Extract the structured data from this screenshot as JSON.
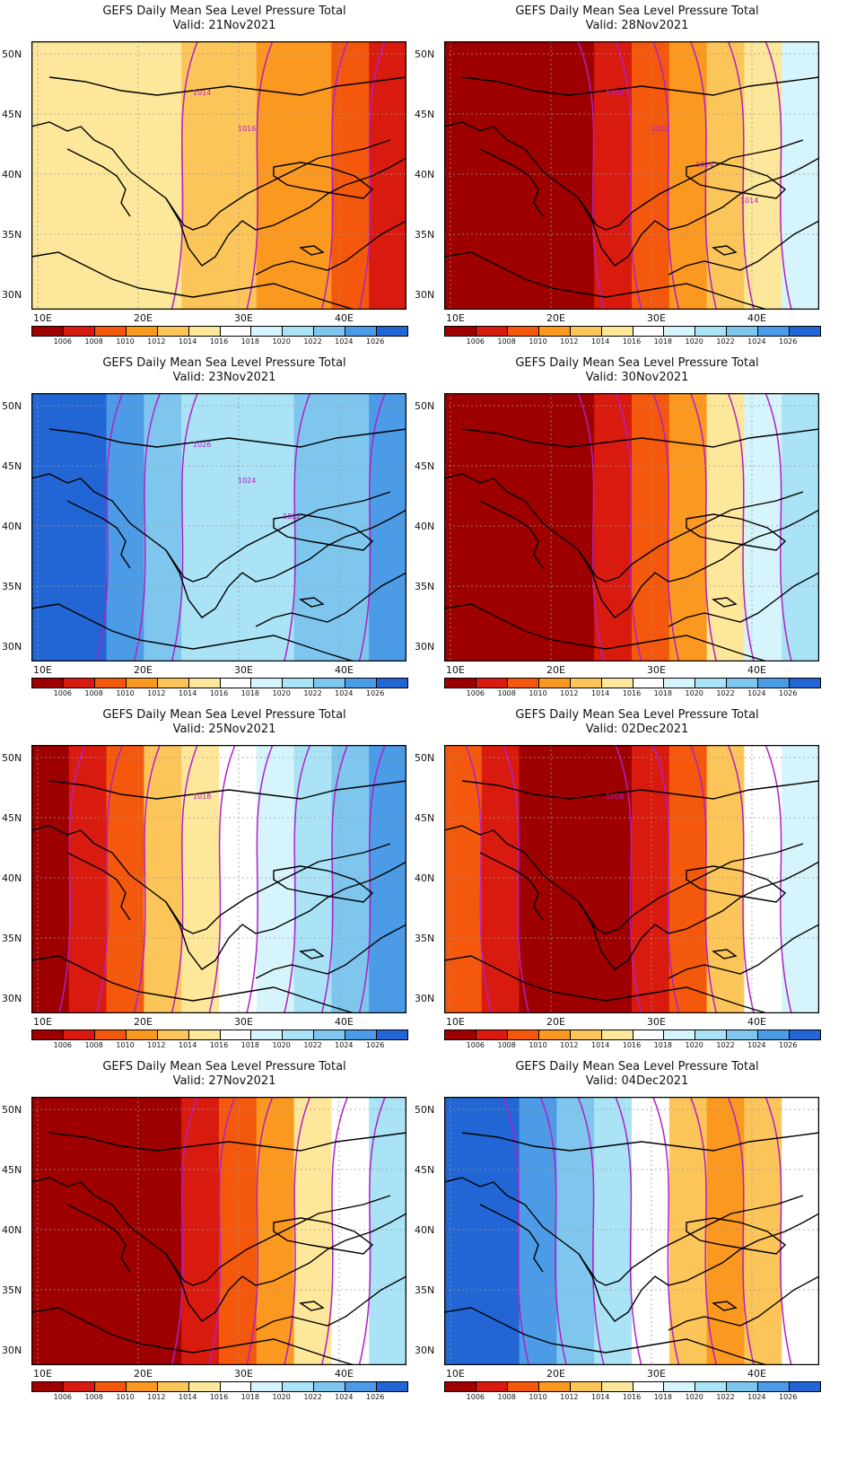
{
  "levels": [
    "1006",
    "1008",
    "1010",
    "1012",
    "1014",
    "1016",
    "1018",
    "1020",
    "1022",
    "1024",
    "1026"
  ],
  "palette": [
    "#9e0000",
    "#d91b0f",
    "#f3580c",
    "#fb9820",
    "#fcc55a",
    "#fde79a",
    "#ffffff",
    "#d6f4fb",
    "#a9e3f5",
    "#7fc6ef",
    "#4c9be6",
    "#2166d4"
  ],
  "lat_labels": [
    "50N",
    "45N",
    "40N",
    "35N",
    "30N"
  ],
  "lon_labels": [
    "10E",
    "20E",
    "30E",
    "40E"
  ],
  "panels": [
    {
      "title": "GEFS Daily Mean Sea Level Pressure Total",
      "valid": "Valid: 21Nov2021",
      "field": [
        5,
        5,
        5,
        5,
        4,
        4,
        3,
        3,
        2,
        1
      ],
      "contour_labels": [
        "1014",
        "1016"
      ]
    },
    {
      "title": "GEFS Daily Mean Sea Level Pressure Total",
      "valid": "Valid: 28Nov2021",
      "field": [
        0,
        0,
        0,
        0,
        1,
        2,
        3,
        4,
        5,
        7
      ],
      "contour_labels": [
        "1008",
        "1012",
        "1014",
        "1014"
      ]
    },
    {
      "title": "GEFS Daily Mean Sea Level Pressure Total",
      "valid": "Valid: 23Nov2021",
      "field": [
        11,
        11,
        10,
        9,
        8,
        8,
        8,
        9,
        9,
        10
      ],
      "contour_labels": [
        "1026",
        "1024",
        "1022"
      ]
    },
    {
      "title": "GEFS Daily Mean Sea Level Pressure Total",
      "valid": "Valid: 30Nov2021",
      "field": [
        0,
        0,
        0,
        0,
        1,
        2,
        3,
        5,
        7,
        8
      ],
      "contour_labels": []
    },
    {
      "title": "GEFS Daily Mean Sea Level Pressure Total",
      "valid": "Valid: 25Nov2021",
      "field": [
        0,
        1,
        2,
        4,
        5,
        6,
        7,
        8,
        9,
        10
      ],
      "contour_labels": [
        "1018"
      ]
    },
    {
      "title": "GEFS Daily Mean Sea Level Pressure Total",
      "valid": "Valid: 02Dec2021",
      "field": [
        2,
        1,
        0,
        0,
        0,
        1,
        2,
        4,
        6,
        7
      ],
      "contour_labels": [
        "1008"
      ]
    },
    {
      "title": "GEFS Daily Mean Sea Level Pressure Total",
      "valid": "Valid: 27Nov2021",
      "field": [
        0,
        0,
        0,
        0,
        1,
        2,
        3,
        5,
        6,
        8
      ],
      "contour_labels": []
    },
    {
      "title": "GEFS Daily Mean Sea Level Pressure Total",
      "valid": "Valid: 04Dec2021",
      "field": [
        11,
        11,
        10,
        9,
        8,
        6,
        4,
        3,
        4,
        6
      ],
      "contour_labels": []
    }
  ]
}
